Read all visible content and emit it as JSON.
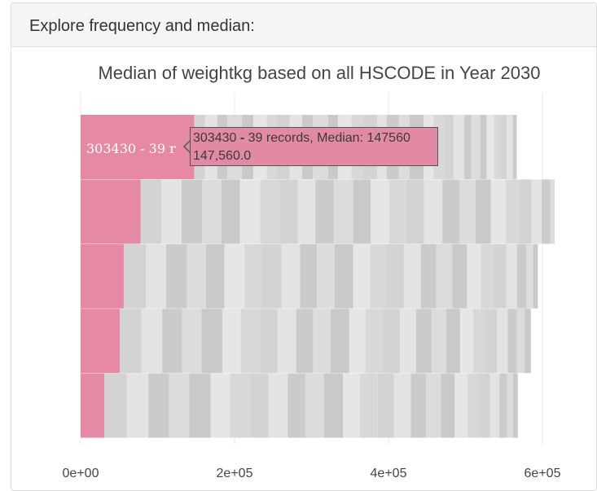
{
  "panel": {
    "heading": "Explore frequency and median:"
  },
  "tooltip": {
    "line1_prefix": "303430 ",
    "line1_dash": "-",
    "line1_suffix": " 39  records, Median: 147560",
    "line2": "147,560.0"
  },
  "chart_data": {
    "type": "bar",
    "orientation": "horizontal",
    "stacked": true,
    "title": "Median of weightkg based on all HSCODE in Year 2030",
    "xlim": [
      0,
      650000
    ],
    "x_ticks": [
      {
        "value": 0,
        "label": "0e+00"
      },
      {
        "value": 200000,
        "label": "2e+05"
      },
      {
        "value": 400000,
        "label": "4e+05"
      },
      {
        "value": 600000,
        "label": "6e+05"
      }
    ],
    "grid": true,
    "highlight_color": "#e589a5",
    "rest_colors": [
      "#d3d3d3",
      "#e3e3e3",
      "#cbcbcb",
      "#dcdcdc",
      "#c9c9c9",
      "#e6e6e6",
      "#d8d8d8"
    ],
    "rows": [
      {
        "highlight": 147560,
        "label": "303430 - 39  r",
        "rest": [
          14000,
          16000,
          13000,
          19000,
          15000,
          17000,
          12000,
          18000,
          16000,
          14000,
          20000,
          13000,
          17000,
          15000,
          19000,
          12000,
          16000,
          14000,
          18000,
          13000,
          15000,
          11000,
          14000,
          9000,
          12000,
          8000,
          10000,
          9000,
          7000,
          8000,
          5000
        ]
      },
      {
        "highlight": 78000,
        "label": "",
        "rest": [
          27000,
          26000,
          27000,
          25000,
          24000,
          26000,
          25000,
          24000,
          23000,
          24000,
          25000,
          23000,
          24000,
          22000,
          23000,
          24000,
          22000,
          21000,
          20000,
          19000,
          18000,
          16000,
          13000,
          11000,
          6000
        ]
      },
      {
        "highlight": 56000,
        "label": "",
        "rest": [
          29000,
          26000,
          27000,
          25000,
          24000,
          26000,
          23000,
          25000,
          24000,
          22000,
          23000,
          24000,
          22000,
          21000,
          23000,
          22000,
          20000,
          21000,
          19000,
          18000,
          17000,
          16000,
          14000,
          12000,
          9000,
          6000
        ]
      },
      {
        "highlight": 51000,
        "label": "",
        "rest": [
          28000,
          27000,
          26000,
          25000,
          27000,
          24000,
          25000,
          23000,
          24000,
          22000,
          23000,
          24000,
          21000,
          22000,
          23000,
          21000,
          20000,
          19000,
          18000,
          17000,
          16000,
          15000,
          14000,
          12000,
          10000,
          8000
        ]
      },
      {
        "highlight": 31000,
        "label": "",
        "rest": [
          29000,
          28000,
          27000,
          26000,
          28000,
          25000,
          26000,
          24000,
          25000,
          23000,
          24000,
          25000,
          22000,
          23000,
          21000,
          22000,
          20000,
          19000,
          18000,
          17000,
          15000,
          14000,
          12000,
          10000,
          8000,
          6000
        ]
      }
    ]
  }
}
